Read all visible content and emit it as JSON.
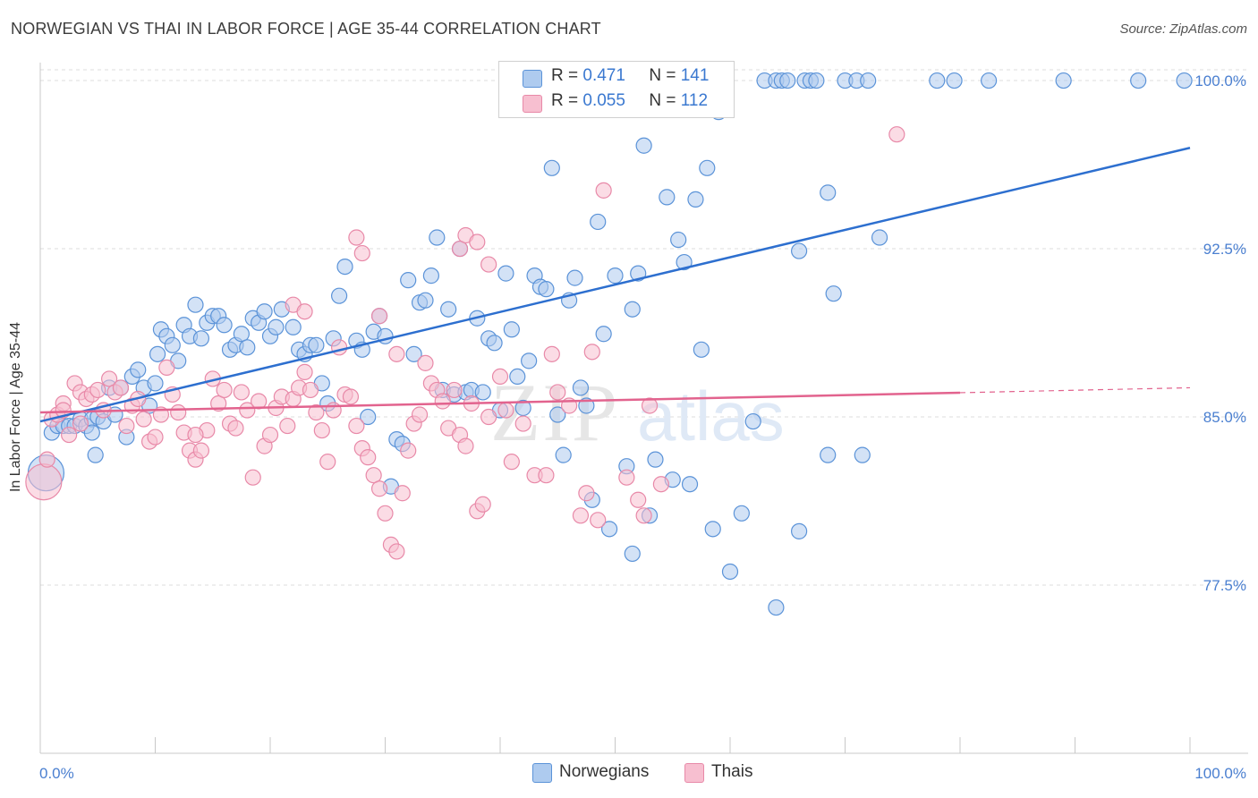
{
  "header": {
    "title": "NORWEGIAN VS THAI IN LABOR FORCE | AGE 35-44 CORRELATION CHART",
    "source": "Source: ZipAtlas.com"
  },
  "colors": {
    "blue_fill": "#aecbef",
    "blue_stroke": "#5b93d8",
    "blue_line": "#2d6fcf",
    "pink_fill": "#f7bfd0",
    "pink_stroke": "#e889a8",
    "pink_line": "#e2638e",
    "axis_text": "#4a7fd0",
    "grid": "#dcdcdc"
  },
  "legend": {
    "rows": [
      {
        "r_label": "R =",
        "r_value": "0.471",
        "n_label": "N =",
        "n_value": "141"
      },
      {
        "r_label": "R =",
        "r_value": "0.055",
        "n_label": "N =",
        "n_value": "112"
      }
    ]
  },
  "bottom_legend": {
    "items": [
      {
        "label": "Norwegians"
      },
      {
        "label": "Thais"
      }
    ]
  },
  "watermark": {
    "zip": "ZIP",
    "atlas": "atlas"
  },
  "chart_data": {
    "type": "scatter",
    "title": "NORWEGIAN VS THAI IN LABOR FORCE | AGE 35-44 CORRELATION CHART",
    "xlabel": "",
    "ylabel": "In Labor Force | Age 35-44",
    "xlim": [
      0,
      100
    ],
    "ylim": [
      70.0,
      100.8
    ],
    "x_tick_labels": [
      "0.0%",
      "100.0%"
    ],
    "y_ticks": [
      77.5,
      85.0,
      92.5,
      100.0
    ],
    "y_tick_labels": [
      "77.5%",
      "85.0%",
      "92.5%",
      "100.0%"
    ],
    "grid": true,
    "legend_position": "top-center",
    "series": [
      {
        "name": "Norwegians",
        "R": 0.471,
        "N": 141,
        "trend": {
          "x": [
            0,
            100
          ],
          "y": [
            84.8,
            97.0
          ],
          "dashed_after": null
        },
        "points": [
          [
            0.5,
            82.5
          ],
          [
            1.0,
            84.3
          ],
          [
            1.5,
            84.6
          ],
          [
            2.0,
            84.6
          ],
          [
            2.5,
            84.6
          ],
          [
            3.0,
            84.6
          ],
          [
            3.5,
            84.9
          ],
          [
            4.0,
            84.6
          ],
          [
            4.5,
            84.9
          ],
          [
            4.5,
            84.3
          ],
          [
            5.0,
            85.0
          ],
          [
            4.8,
            83.3
          ],
          [
            5.5,
            84.8
          ],
          [
            6.0,
            86.3
          ],
          [
            6.5,
            85.1
          ],
          [
            7.0,
            86.3
          ],
          [
            7.5,
            84.1
          ],
          [
            8.0,
            86.8
          ],
          [
            8.5,
            87.1
          ],
          [
            9.0,
            86.3
          ],
          [
            9.5,
            85.5
          ],
          [
            10.0,
            86.5
          ],
          [
            10.2,
            87.8
          ],
          [
            10.5,
            88.9
          ],
          [
            11.0,
            88.6
          ],
          [
            11.5,
            88.2
          ],
          [
            12.0,
            87.5
          ],
          [
            12.5,
            89.1
          ],
          [
            13.0,
            88.6
          ],
          [
            13.5,
            90.0
          ],
          [
            14.0,
            88.5
          ],
          [
            14.5,
            89.2
          ],
          [
            15.0,
            89.5
          ],
          [
            15.5,
            89.5
          ],
          [
            16.0,
            89.1
          ],
          [
            16.5,
            88.0
          ],
          [
            17.0,
            88.2
          ],
          [
            17.5,
            88.7
          ],
          [
            18.0,
            88.1
          ],
          [
            18.5,
            89.4
          ],
          [
            19.0,
            89.2
          ],
          [
            19.5,
            89.7
          ],
          [
            20.0,
            88.6
          ],
          [
            20.5,
            89.0
          ],
          [
            21.0,
            89.8
          ],
          [
            22.0,
            89.0
          ],
          [
            22.5,
            88.0
          ],
          [
            23.0,
            87.8
          ],
          [
            23.5,
            88.2
          ],
          [
            24.0,
            88.2
          ],
          [
            24.5,
            86.5
          ],
          [
            25.0,
            85.6
          ],
          [
            25.5,
            88.5
          ],
          [
            26.0,
            90.4
          ],
          [
            26.5,
            91.7
          ],
          [
            27.5,
            88.4
          ],
          [
            28.0,
            88.0
          ],
          [
            28.5,
            85.0
          ],
          [
            29.0,
            88.8
          ],
          [
            29.5,
            89.5
          ],
          [
            30.0,
            88.6
          ],
          [
            30.5,
            81.9
          ],
          [
            31.0,
            84.0
          ],
          [
            31.5,
            83.8
          ],
          [
            32.0,
            91.1
          ],
          [
            32.5,
            87.8
          ],
          [
            33.0,
            90.1
          ],
          [
            33.5,
            90.2
          ],
          [
            34.0,
            91.3
          ],
          [
            34.5,
            93.0
          ],
          [
            35.0,
            86.2
          ],
          [
            35.5,
            89.8
          ],
          [
            36.0,
            86.0
          ],
          [
            36.5,
            92.5
          ],
          [
            37.0,
            86.1
          ],
          [
            37.5,
            86.2
          ],
          [
            38.0,
            89.4
          ],
          [
            38.5,
            86.1
          ],
          [
            39.0,
            88.5
          ],
          [
            39.5,
            88.3
          ],
          [
            40.0,
            85.3
          ],
          [
            40.5,
            91.4
          ],
          [
            41.0,
            88.9
          ],
          [
            41.5,
            86.8
          ],
          [
            42.0,
            85.4
          ],
          [
            42.5,
            87.5
          ],
          [
            43.0,
            91.3
          ],
          [
            43.5,
            90.8
          ],
          [
            44.0,
            90.7
          ],
          [
            44.5,
            96.1
          ],
          [
            45.0,
            85.1
          ],
          [
            45.5,
            83.3
          ],
          [
            46.0,
            90.2
          ],
          [
            46.5,
            91.2
          ],
          [
            47.0,
            86.3
          ],
          [
            47.5,
            85.5
          ],
          [
            48.0,
            81.3
          ],
          [
            48.5,
            93.7
          ],
          [
            49.0,
            88.7
          ],
          [
            49.5,
            80.0
          ],
          [
            50.0,
            91.3
          ],
          [
            50.5,
            99.5
          ],
          [
            51.0,
            99.3
          ],
          [
            51.5,
            89.8
          ],
          [
            52.0,
            91.4
          ],
          [
            52.5,
            97.1
          ],
          [
            53.0,
            80.6
          ],
          [
            53.5,
            83.1
          ],
          [
            54.5,
            94.8
          ],
          [
            55.0,
            82.2
          ],
          [
            55.5,
            92.9
          ],
          [
            56.0,
            91.9
          ],
          [
            56.5,
            82.0
          ],
          [
            57.0,
            94.7
          ],
          [
            57.5,
            88.0
          ],
          [
            58.0,
            96.1
          ],
          [
            58.5,
            80.0
          ],
          [
            59.0,
            98.6
          ],
          [
            60.0,
            78.1
          ],
          [
            61.0,
            80.7
          ],
          [
            62.0,
            84.8
          ],
          [
            63.0,
            100.0
          ],
          [
            64.0,
            100.0
          ],
          [
            64.5,
            100.0
          ],
          [
            65.0,
            100.0
          ],
          [
            66.0,
            92.4
          ],
          [
            66.5,
            100.0
          ],
          [
            67.0,
            100.0
          ],
          [
            67.5,
            100.0
          ],
          [
            68.5,
            95.0
          ],
          [
            69.0,
            90.5
          ],
          [
            70.0,
            100.0
          ],
          [
            71.0,
            100.0
          ],
          [
            71.5,
            83.3
          ],
          [
            72.0,
            100.0
          ],
          [
            73.0,
            93.0
          ],
          [
            78.0,
            100.0
          ],
          [
            79.5,
            100.0
          ],
          [
            82.5,
            100.0
          ],
          [
            89.0,
            100.0
          ],
          [
            95.5,
            100.0
          ],
          [
            99.5,
            100.0
          ],
          [
            64.0,
            76.5
          ],
          [
            66.0,
            79.9
          ],
          [
            68.5,
            83.3
          ],
          [
            51.5,
            78.9
          ],
          [
            51.0,
            82.8
          ]
        ]
      },
      {
        "name": "Thais",
        "R": 0.055,
        "N": 112,
        "trend": {
          "x": [
            0,
            100
          ],
          "y": [
            85.2,
            86.3
          ],
          "dashed_after": 80
        },
        "points": [
          [
            0.3,
            82.1
          ],
          [
            0.6,
            83.1
          ],
          [
            1.0,
            84.9
          ],
          [
            1.5,
            85.1
          ],
          [
            2.0,
            85.6
          ],
          [
            2.5,
            84.2
          ],
          [
            3.0,
            86.5
          ],
          [
            3.5,
            86.1
          ],
          [
            4.0,
            85.8
          ],
          [
            4.5,
            86.0
          ],
          [
            5.0,
            86.2
          ],
          [
            5.5,
            85.3
          ],
          [
            6.0,
            86.7
          ],
          [
            6.5,
            86.1
          ],
          [
            7.0,
            86.3
          ],
          [
            7.5,
            84.6
          ],
          [
            8.0,
            85.5
          ],
          [
            8.5,
            85.8
          ],
          [
            9.0,
            84.9
          ],
          [
            9.5,
            83.9
          ],
          [
            10.0,
            84.1
          ],
          [
            10.5,
            85.1
          ],
          [
            11.0,
            87.2
          ],
          [
            11.5,
            86.0
          ],
          [
            12.0,
            85.2
          ],
          [
            12.5,
            84.3
          ],
          [
            13.0,
            83.5
          ],
          [
            13.5,
            83.1
          ],
          [
            14.0,
            83.5
          ],
          [
            14.5,
            84.4
          ],
          [
            15.0,
            86.7
          ],
          [
            15.5,
            85.6
          ],
          [
            16.0,
            86.2
          ],
          [
            16.5,
            84.7
          ],
          [
            17.0,
            84.5
          ],
          [
            17.5,
            86.1
          ],
          [
            18.0,
            85.3
          ],
          [
            18.5,
            82.3
          ],
          [
            19.0,
            85.7
          ],
          [
            19.5,
            83.7
          ],
          [
            20.0,
            84.2
          ],
          [
            20.5,
            85.4
          ],
          [
            21.0,
            85.9
          ],
          [
            21.5,
            84.6
          ],
          [
            22.0,
            85.8
          ],
          [
            22.5,
            86.3
          ],
          [
            23.0,
            87.0
          ],
          [
            23.5,
            86.2
          ],
          [
            24.0,
            85.2
          ],
          [
            24.5,
            84.4
          ],
          [
            25.0,
            83.0
          ],
          [
            25.5,
            85.3
          ],
          [
            26.0,
            88.1
          ],
          [
            26.5,
            86.0
          ],
          [
            27.0,
            85.9
          ],
          [
            27.5,
            84.6
          ],
          [
            28.0,
            83.6
          ],
          [
            28.5,
            83.2
          ],
          [
            29.0,
            82.4
          ],
          [
            29.5,
            81.8
          ],
          [
            30.0,
            80.7
          ],
          [
            30.5,
            79.3
          ],
          [
            31.0,
            79.0
          ],
          [
            31.5,
            81.6
          ],
          [
            32.0,
            83.5
          ],
          [
            32.5,
            84.7
          ],
          [
            33.0,
            85.1
          ],
          [
            33.5,
            87.4
          ],
          [
            34.0,
            86.5
          ],
          [
            34.5,
            86.2
          ],
          [
            35.0,
            85.7
          ],
          [
            35.5,
            84.5
          ],
          [
            36.0,
            86.2
          ],
          [
            36.5,
            84.2
          ],
          [
            37.0,
            83.7
          ],
          [
            37.5,
            85.6
          ],
          [
            38.0,
            80.8
          ],
          [
            38.5,
            81.1
          ],
          [
            39.0,
            85.0
          ],
          [
            40.0,
            86.8
          ],
          [
            40.5,
            85.3
          ],
          [
            41.0,
            83.0
          ],
          [
            42.0,
            84.7
          ],
          [
            43.0,
            82.4
          ],
          [
            44.0,
            82.4
          ],
          [
            44.5,
            87.8
          ],
          [
            45.0,
            86.1
          ],
          [
            46.0,
            85.5
          ],
          [
            47.0,
            80.6
          ],
          [
            47.5,
            81.6
          ],
          [
            48.0,
            87.9
          ],
          [
            48.5,
            80.4
          ],
          [
            49.0,
            95.1
          ],
          [
            51.0,
            82.3
          ],
          [
            52.0,
            81.3
          ],
          [
            52.5,
            80.6
          ],
          [
            53.0,
            85.5
          ],
          [
            54.0,
            82.0
          ],
          [
            36.5,
            92.5
          ],
          [
            37.0,
            93.1
          ],
          [
            38.0,
            92.8
          ],
          [
            27.5,
            93.0
          ],
          [
            28.0,
            92.3
          ],
          [
            39.0,
            91.8
          ],
          [
            22.0,
            90.0
          ],
          [
            23.0,
            89.7
          ],
          [
            29.5,
            89.5
          ],
          [
            13.5,
            84.2
          ],
          [
            31.0,
            87.8
          ],
          [
            74.5,
            97.6
          ],
          [
            2.0,
            85.3
          ],
          [
            3.5,
            84.7
          ]
        ]
      }
    ]
  }
}
